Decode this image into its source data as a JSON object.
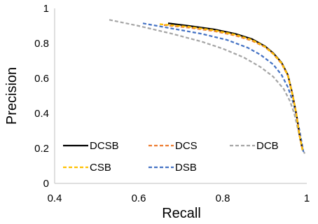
{
  "chart_data": {
    "type": "line",
    "xlabel": "Recall",
    "ylabel": "Precision",
    "xlim": [
      0.4,
      1
    ],
    "ylim": [
      0,
      1
    ],
    "xticks": [
      "0.4",
      "0.6",
      "0.8",
      "1"
    ],
    "yticks": [
      "0",
      "0.2",
      "0.4",
      "0.6",
      "0.8",
      "1"
    ],
    "grid": false,
    "legend_position": "bottom-left",
    "series": [
      {
        "name": "DCSB",
        "color": "#000000",
        "dash": "solid",
        "x": [
          0.67,
          0.72,
          0.78,
          0.83,
          0.87,
          0.9,
          0.92,
          0.94,
          0.955,
          0.965,
          0.975,
          0.983,
          0.99
        ],
        "y": [
          0.915,
          0.9,
          0.88,
          0.855,
          0.825,
          0.785,
          0.745,
          0.69,
          0.62,
          0.52,
          0.4,
          0.27,
          0.19
        ]
      },
      {
        "name": "DCS",
        "color": "#ED7D31",
        "dash": "dashed",
        "x": [
          0.66,
          0.72,
          0.78,
          0.83,
          0.87,
          0.9,
          0.92,
          0.94,
          0.955,
          0.965,
          0.975,
          0.983,
          0.99
        ],
        "y": [
          0.905,
          0.89,
          0.87,
          0.845,
          0.815,
          0.78,
          0.74,
          0.685,
          0.615,
          0.515,
          0.4,
          0.27,
          0.19
        ]
      },
      {
        "name": "DCB",
        "color": "#A5A5A5",
        "dash": "dashed",
        "x": [
          0.53,
          0.6,
          0.68,
          0.75,
          0.8,
          0.85,
          0.89,
          0.92,
          0.945,
          0.96,
          0.97,
          0.98,
          0.99,
          0.995
        ],
        "y": [
          0.935,
          0.9,
          0.855,
          0.81,
          0.77,
          0.72,
          0.665,
          0.61,
          0.54,
          0.47,
          0.4,
          0.3,
          0.2,
          0.17
        ]
      },
      {
        "name": "CSB",
        "color": "#FFC000",
        "dash": "dashed",
        "x": [
          0.65,
          0.72,
          0.78,
          0.83,
          0.87,
          0.9,
          0.92,
          0.94,
          0.955,
          0.965,
          0.975,
          0.983,
          0.99
        ],
        "y": [
          0.91,
          0.895,
          0.875,
          0.85,
          0.82,
          0.782,
          0.742,
          0.688,
          0.618,
          0.518,
          0.4,
          0.27,
          0.19
        ]
      },
      {
        "name": "DSB",
        "color": "#4472C4",
        "dash": "dashed",
        "x": [
          0.61,
          0.68,
          0.75,
          0.81,
          0.86,
          0.89,
          0.92,
          0.94,
          0.955,
          0.968,
          0.978,
          0.986,
          0.992
        ],
        "y": [
          0.915,
          0.885,
          0.855,
          0.82,
          0.775,
          0.735,
          0.68,
          0.62,
          0.55,
          0.46,
          0.36,
          0.26,
          0.18
        ]
      }
    ]
  }
}
